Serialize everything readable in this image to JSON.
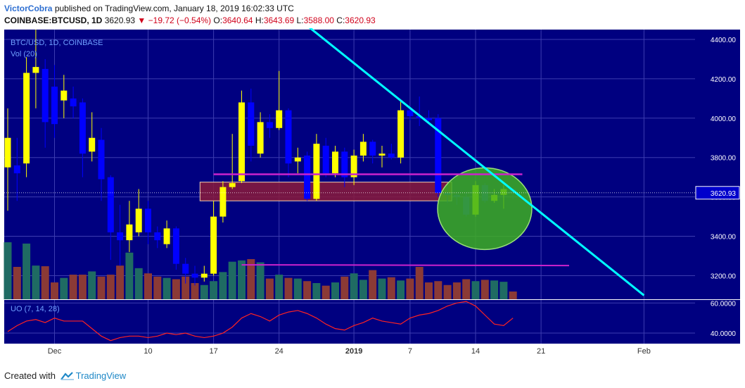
{
  "header": {
    "author": "VictorCobra",
    "published_text": "published on TradingView.com, January 18, 2019 16:02:33 UTC",
    "symbol": "COINBASE:BTCUSD, 1D",
    "last": "3620.93",
    "change": "−19.72 (−0.54%)",
    "o_label": "O:",
    "o_value": "3640.64",
    "h_label": "H:",
    "h_value": "3643.69",
    "l_label": "L:",
    "l_value": "3588.00",
    "c_label": "C:",
    "c_value": "3620.93"
  },
  "footer": {
    "created_with": "Created with",
    "brand": "TradingView"
  },
  "colors": {
    "panel_bg": "#000080",
    "grid": "#3c3cb0",
    "up_candle": "#ffff00",
    "down_candle": "#0000ff",
    "vol_up": "#1f6b63",
    "vol_down": "#8b3a36",
    "trendline": "#00ffff",
    "support": "#cc22cc",
    "zone": "#8b1a3a",
    "circle": "#3db021",
    "uo_line": "#ff2222",
    "axis_text": "#ffffff",
    "label_text": "#6fa0ff"
  },
  "chart_data": {
    "type": "candlestick",
    "title": "BTC/USD, 1D, COINBASE",
    "volume_label": "Vol (20)",
    "indicator_label": "UO (7, 14, 28)",
    "ylim": [
      3080,
      4450
    ],
    "y_ticks": [
      "4400.00",
      "4200.00",
      "4000.00",
      "3800.00",
      "3600.00",
      "3400.00",
      "3200.00"
    ],
    "price_label": "3620.93",
    "x_ticks": [
      "Dec",
      "10",
      "17",
      "24",
      "2019",
      "7",
      "14",
      "21",
      "Feb"
    ],
    "uo_ylim": [
      33,
      62
    ],
    "uo_ticks": [
      "60.0000",
      "40.0000"
    ],
    "candles": [
      {
        "d": "2018-11-25",
        "o": 3750,
        "h": 4050,
        "l": 3530,
        "c": 3900
      },
      {
        "d": "2018-11-26",
        "o": 3760,
        "h": 3900,
        "l": 3580,
        "c": 3720
      },
      {
        "d": "2018-11-27",
        "o": 3770,
        "h": 4310,
        "l": 3700,
        "c": 4230
      },
      {
        "d": "2018-11-28",
        "o": 4230,
        "h": 4450,
        "l": 4050,
        "c": 4260
      },
      {
        "d": "2018-11-29",
        "o": 4250,
        "h": 4300,
        "l": 3850,
        "c": 3980
      },
      {
        "d": "2018-11-30",
        "o": 4160,
        "h": 4270,
        "l": 3900,
        "c": 3970
      },
      {
        "d": "2018-12-01",
        "o": 4090,
        "h": 4220,
        "l": 4000,
        "c": 4140
      },
      {
        "d": "2018-12-02",
        "o": 4100,
        "h": 4160,
        "l": 4000,
        "c": 4060
      },
      {
        "d": "2018-12-03",
        "o": 4080,
        "h": 4100,
        "l": 3700,
        "c": 3820
      },
      {
        "d": "2018-12-04",
        "o": 3830,
        "h": 4030,
        "l": 3780,
        "c": 3900
      },
      {
        "d": "2018-12-05",
        "o": 3890,
        "h": 3950,
        "l": 3580,
        "c": 3690
      },
      {
        "d": "2018-12-06",
        "o": 3700,
        "h": 3710,
        "l": 3280,
        "c": 3420
      },
      {
        "d": "2018-12-07",
        "o": 3420,
        "h": 3560,
        "l": 3250,
        "c": 3380
      },
      {
        "d": "2018-12-08",
        "o": 3380,
        "h": 3580,
        "l": 3320,
        "c": 3460
      },
      {
        "d": "2018-12-09",
        "o": 3420,
        "h": 3640,
        "l": 3400,
        "c": 3540
      },
      {
        "d": "2018-12-10",
        "o": 3540,
        "h": 3580,
        "l": 3360,
        "c": 3420
      },
      {
        "d": "2018-12-11",
        "o": 3420,
        "h": 3450,
        "l": 3340,
        "c": 3380
      },
      {
        "d": "2018-12-12",
        "o": 3360,
        "h": 3480,
        "l": 3340,
        "c": 3440
      },
      {
        "d": "2018-12-13",
        "o": 3440,
        "h": 3450,
        "l": 3230,
        "c": 3260
      },
      {
        "d": "2018-12-14",
        "o": 3260,
        "h": 3290,
        "l": 3160,
        "c": 3210
      },
      {
        "d": "2018-12-15",
        "o": 3210,
        "h": 3250,
        "l": 3150,
        "c": 3190
      },
      {
        "d": "2018-12-16",
        "o": 3190,
        "h": 3250,
        "l": 3170,
        "c": 3210
      },
      {
        "d": "2018-12-17",
        "o": 3210,
        "h": 3580,
        "l": 3200,
        "c": 3500
      },
      {
        "d": "2018-12-18",
        "o": 3500,
        "h": 3680,
        "l": 3470,
        "c": 3650
      },
      {
        "d": "2018-12-19",
        "o": 3650,
        "h": 3920,
        "l": 3640,
        "c": 3670
      },
      {
        "d": "2018-12-20",
        "o": 3680,
        "h": 4140,
        "l": 3670,
        "c": 4080
      },
      {
        "d": "2018-12-21",
        "o": 4080,
        "h": 4150,
        "l": 3780,
        "c": 3860
      },
      {
        "d": "2018-12-22",
        "o": 3820,
        "h": 4030,
        "l": 3800,
        "c": 3980
      },
      {
        "d": "2018-12-23",
        "o": 3980,
        "h": 4020,
        "l": 3900,
        "c": 3950
      },
      {
        "d": "2018-12-24",
        "o": 3950,
        "h": 4240,
        "l": 3940,
        "c": 4040
      },
      {
        "d": "2018-12-25",
        "o": 4040,
        "h": 4050,
        "l": 3700,
        "c": 3770
      },
      {
        "d": "2018-12-26",
        "o": 3780,
        "h": 3850,
        "l": 3720,
        "c": 3800
      },
      {
        "d": "2018-12-27",
        "o": 3810,
        "h": 3830,
        "l": 3580,
        "c": 3590
      },
      {
        "d": "2018-12-28",
        "o": 3590,
        "h": 3920,
        "l": 3580,
        "c": 3870
      },
      {
        "d": "2018-12-29",
        "o": 3860,
        "h": 3900,
        "l": 3700,
        "c": 3720
      },
      {
        "d": "2018-12-30",
        "o": 3720,
        "h": 3860,
        "l": 3700,
        "c": 3830
      },
      {
        "d": "2018-12-31",
        "o": 3830,
        "h": 3850,
        "l": 3650,
        "c": 3700
      },
      {
        "d": "2019-01-01",
        "o": 3700,
        "h": 3840,
        "l": 3660,
        "c": 3810
      },
      {
        "d": "2019-01-02",
        "o": 3810,
        "h": 3920,
        "l": 3780,
        "c": 3880
      },
      {
        "d": "2019-01-03",
        "o": 3880,
        "h": 3890,
        "l": 3770,
        "c": 3810
      },
      {
        "d": "2019-01-04",
        "o": 3810,
        "h": 3860,
        "l": 3750,
        "c": 3820
      },
      {
        "d": "2019-01-05",
        "o": 3820,
        "h": 3870,
        "l": 3790,
        "c": 3800
      },
      {
        "d": "2019-01-06",
        "o": 3800,
        "h": 4090,
        "l": 3770,
        "c": 4040
      },
      {
        "d": "2019-01-07",
        "o": 4040,
        "h": 4060,
        "l": 3990,
        "c": 4010
      },
      {
        "d": "2019-01-08",
        "o": 4010,
        "h": 4110,
        "l": 3960,
        "c": 4000
      },
      {
        "d": "2019-01-09",
        "o": 4000,
        "h": 4040,
        "l": 3980,
        "c": 3990
      },
      {
        "d": "2019-01-10",
        "o": 4000,
        "h": 4020,
        "l": 3600,
        "c": 3620
      },
      {
        "d": "2019-01-11",
        "o": 3620,
        "h": 3660,
        "l": 3570,
        "c": 3610
      },
      {
        "d": "2019-01-12",
        "o": 3610,
        "h": 3620,
        "l": 3560,
        "c": 3600
      },
      {
        "d": "2019-01-13",
        "o": 3600,
        "h": 3620,
        "l": 3500,
        "c": 3510
      },
      {
        "d": "2019-01-14",
        "o": 3510,
        "h": 3680,
        "l": 3500,
        "c": 3660
      },
      {
        "d": "2019-01-15",
        "o": 3660,
        "h": 3670,
        "l": 3570,
        "c": 3580
      },
      {
        "d": "2019-01-16",
        "o": 3580,
        "h": 3640,
        "l": 3570,
        "c": 3610
      },
      {
        "d": "2019-01-17",
        "o": 3610,
        "h": 3660,
        "l": 3540,
        "c": 3640
      },
      {
        "d": "2019-01-18",
        "o": 3640.64,
        "h": 3643.69,
        "l": 3588.0,
        "c": 3620.93
      }
    ],
    "volume": [
      88,
      50,
      86,
      52,
      51,
      26,
      33,
      38,
      38,
      43,
      35,
      38,
      52,
      72,
      48,
      40,
      35,
      33,
      31,
      35,
      25,
      22,
      28,
      42,
      58,
      60,
      62,
      57,
      32,
      38,
      33,
      32,
      28,
      25,
      21,
      26,
      35,
      40,
      30,
      45,
      32,
      34,
      29,
      32,
      50,
      26,
      28,
      22,
      26,
      31,
      28,
      30,
      29,
      27,
      12
    ],
    "uo": [
      41,
      45,
      48,
      49,
      47,
      50,
      48,
      48,
      48,
      43,
      38,
      35,
      37,
      38,
      38,
      37,
      38,
      40,
      39,
      40,
      38,
      37,
      38,
      40,
      44,
      50,
      53,
      51,
      48,
      52,
      54,
      55,
      53,
      50,
      46,
      43,
      42,
      45,
      47,
      50,
      48,
      47,
      46,
      50,
      52,
      53,
      55,
      58,
      60,
      61,
      58,
      52,
      46,
      45,
      50
    ],
    "annotations": {
      "trendline": [
        {
          "d": "2018-12-27",
          "p": 4470
        },
        {
          "d": "2019-02-01",
          "p": 3100
        }
      ],
      "resistance_line": {
        "from": "2018-12-17",
        "to": "2019-01-19",
        "p": 3715
      },
      "support_line": {
        "from": "2018-12-20",
        "to": "2019-01-24",
        "p": 3255
      },
      "zone": {
        "from": "2018-12-16",
        "to": "2019-01-11",
        "p_low": 3580,
        "p_high": 3675
      },
      "circle": {
        "d": "2019-01-14",
        "p": 3540
      }
    }
  }
}
